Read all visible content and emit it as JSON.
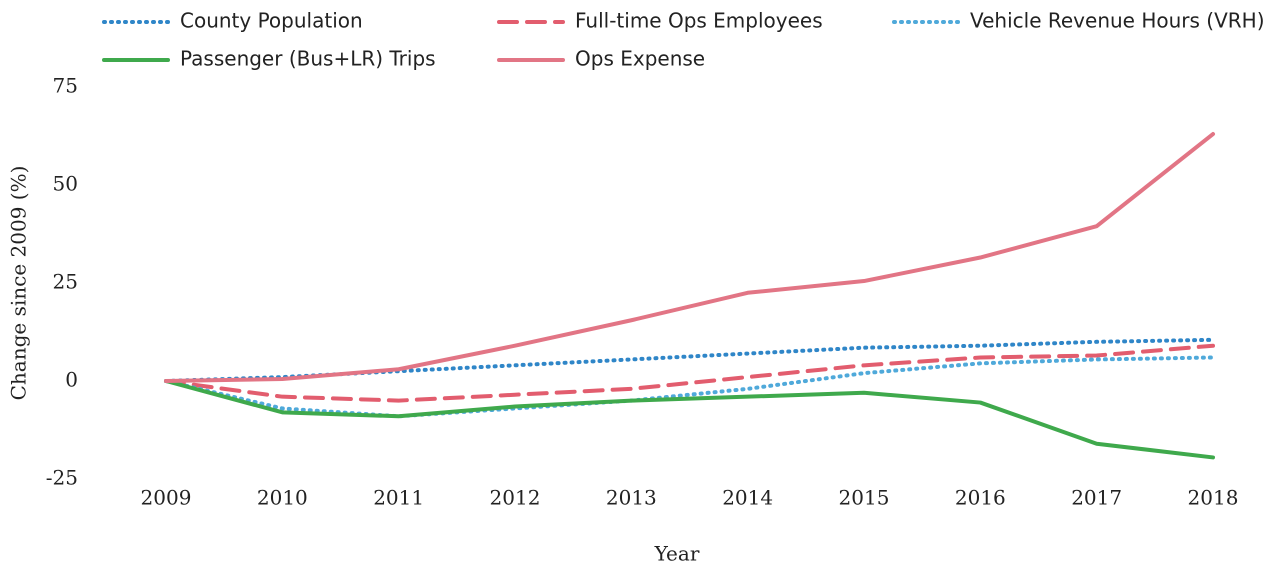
{
  "chart_data": {
    "type": "line",
    "x_label": "Year",
    "y_label": "Change since 2009 (%)",
    "categories": [
      "2009",
      "2010",
      "2011",
      "2012",
      "2013",
      "2014",
      "2015",
      "2016",
      "2017",
      "2018"
    ],
    "series": [
      {
        "name": "County Population",
        "color": "#2f86c8",
        "style": "dotted",
        "values": [
          0,
          1,
          2.5,
          4,
          5.5,
          7,
          8.5,
          9,
          10,
          10.5
        ]
      },
      {
        "name": "Full-time Ops Employees",
        "color": "#e25d6e",
        "style": "dashed",
        "values": [
          0,
          -4,
          -5,
          -3.5,
          -2,
          1,
          4,
          6,
          6.5,
          9
        ]
      },
      {
        "name": "Vehicle Revenue Hours (VRH)",
        "color": "#4fa9da",
        "style": "dotted",
        "values": [
          0,
          -7,
          -9,
          -7,
          -5,
          -2,
          2,
          4.5,
          5.5,
          6
        ]
      },
      {
        "name": "Passenger (Bus+LR) Trips",
        "color": "#3fa94c",
        "style": "solid",
        "values": [
          0,
          -8,
          -9,
          -6.5,
          -5,
          -4,
          -3,
          -5.5,
          -16,
          -19.5
        ]
      },
      {
        "name": "Ops Expense",
        "color": "#e27585",
        "style": "solid",
        "values": [
          0,
          0.5,
          3,
          9,
          15.5,
          22.5,
          25.5,
          31.5,
          39.5,
          63
        ]
      }
    ],
    "ylim": [
      -25,
      75
    ],
    "yticks": [
      -25,
      0,
      25,
      50,
      75
    ],
    "grid": false,
    "legend": "top"
  }
}
